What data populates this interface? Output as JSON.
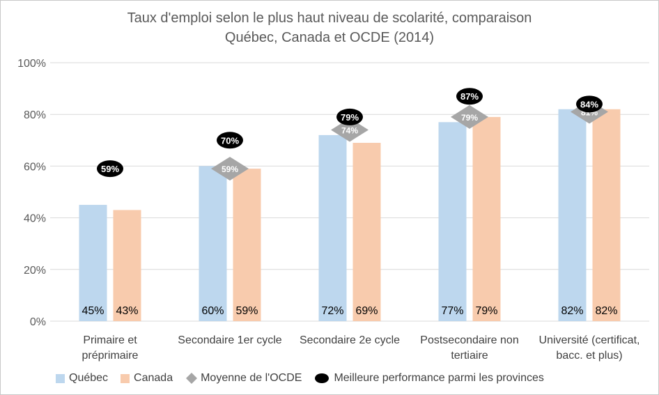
{
  "chart_data": {
    "type": "bar",
    "title_lines": [
      "Taux d'emploi selon le plus haut niveau de scolarité, comparaison",
      "Québec, Canada et OCDE (2014)"
    ],
    "categories": [
      [
        "Primaire et",
        "préprimaire"
      ],
      [
        "Secondaire 1er cycle"
      ],
      [
        "Secondaire 2e cycle"
      ],
      [
        "Postsecondaire non",
        "tertiaire"
      ],
      [
        "Université (certificat,",
        "bacc. et plus)"
      ]
    ],
    "ylim": [
      0,
      100
    ],
    "yticks": [
      0,
      20,
      40,
      60,
      80,
      100
    ],
    "ytick_labels": [
      "0%",
      "20%",
      "40%",
      "60%",
      "80%",
      "100%"
    ],
    "grid": true,
    "legend_position": "bottom",
    "series": [
      {
        "name": "Québec",
        "type": "bar",
        "color": "#bdd7ee",
        "values": [
          45,
          60,
          72,
          77,
          82
        ],
        "labels": [
          "45%",
          "60%",
          "72%",
          "77%",
          "82%"
        ]
      },
      {
        "name": "Canada",
        "type": "bar",
        "color": "#f8cbad",
        "values": [
          43,
          59,
          69,
          79,
          82
        ],
        "labels": [
          "43%",
          "59%",
          "69%",
          "79%",
          "82%"
        ]
      },
      {
        "name": "Moyenne de l'OCDE",
        "type": "marker-diamond",
        "color": "#a6a6a6",
        "values": [
          null,
          59,
          74,
          79,
          81
        ],
        "labels": [
          "",
          "59%",
          "74%",
          "79%",
          "81%"
        ]
      },
      {
        "name": "Meilleure performance parmi les provinces",
        "type": "marker-ellipse",
        "color": "#000000",
        "values": [
          59,
          70,
          79,
          87,
          84
        ],
        "labels": [
          "59%",
          "70%",
          "79%",
          "87%",
          "84%"
        ]
      }
    ]
  }
}
